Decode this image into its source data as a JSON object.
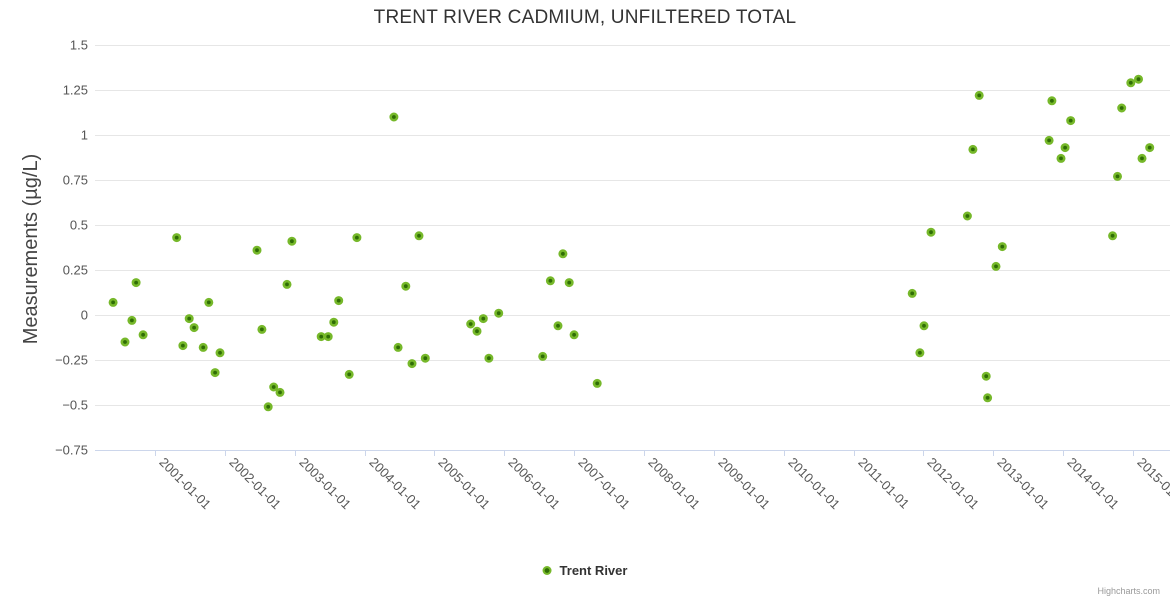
{
  "credits": "Highcharts.com",
  "legend": {
    "label": "Trent River"
  },
  "colors": {
    "background": "#ffffff",
    "title_text": "#333333",
    "axis_title_text": "#444444",
    "tick_label_text": "#555555",
    "gridline": "#e6e6e6",
    "axis_line": "#ccd6eb",
    "marker_outer": "#76b82a",
    "marker_inner": "#2f6d05"
  },
  "chart_data": {
    "type": "scatter",
    "title": "TRENT RIVER CADMIUM, UNFILTERED TOTAL",
    "xlabel": "",
    "ylabel": "Measurements (µg/L)",
    "ylim": [
      -0.75,
      1.5
    ],
    "xlim_decimal_years": [
      2000.15,
      2015.55
    ],
    "grid": "horizontal-only",
    "legend_position": "bottom-center",
    "x_tick_years": [
      2001,
      2002,
      2003,
      2004,
      2005,
      2006,
      2007,
      2008,
      2009,
      2010,
      2011,
      2012,
      2013,
      2014,
      2015
    ],
    "x_tick_labels": [
      "2001-01-01",
      "2002-01-01",
      "2003-01-01",
      "2004-01-01",
      "2005-01-01",
      "2006-01-01",
      "2007-01-01",
      "2008-01-01",
      "2009-01-01",
      "2010-01-01",
      "2011-01-01",
      "2012-01-01",
      "2013-01-01",
      "2014-01-01",
      "2015-01-01"
    ],
    "y_tick_values": [
      1.5,
      1.25,
      1,
      0.75,
      0.5,
      0.25,
      0,
      -0.25,
      -0.5,
      -0.75
    ],
    "y_tick_labels": [
      "1.5",
      "1.25",
      "1",
      "0.75",
      "0.5",
      "0.25",
      "0",
      "−0.25",
      "−0.5",
      "−0.75"
    ],
    "series": [
      {
        "name": "Trent River",
        "points": [
          [
            2000.4,
            0.07
          ],
          [
            2000.57,
            -0.15
          ],
          [
            2000.67,
            -0.03
          ],
          [
            2000.73,
            0.18
          ],
          [
            2000.83,
            -0.11
          ],
          [
            2001.31,
            0.43
          ],
          [
            2001.4,
            -0.17
          ],
          [
            2001.49,
            -0.02
          ],
          [
            2001.56,
            -0.07
          ],
          [
            2001.69,
            -0.18
          ],
          [
            2001.77,
            0.07
          ],
          [
            2001.86,
            -0.32
          ],
          [
            2001.93,
            -0.21
          ],
          [
            2002.46,
            0.36
          ],
          [
            2002.53,
            -0.08
          ],
          [
            2002.62,
            -0.51
          ],
          [
            2002.7,
            -0.4
          ],
          [
            2002.79,
            -0.43
          ],
          [
            2002.89,
            0.17
          ],
          [
            2002.96,
            0.41
          ],
          [
            2003.38,
            -0.12
          ],
          [
            2003.48,
            -0.12
          ],
          [
            2003.56,
            -0.04
          ],
          [
            2003.63,
            0.08
          ],
          [
            2003.78,
            -0.33
          ],
          [
            2003.89,
            0.43
          ],
          [
            2004.42,
            1.1
          ],
          [
            2004.48,
            -0.18
          ],
          [
            2004.59,
            0.16
          ],
          [
            2004.68,
            -0.27
          ],
          [
            2004.78,
            0.44
          ],
          [
            2004.87,
            -0.24
          ],
          [
            2005.52,
            -0.05
          ],
          [
            2005.61,
            -0.09
          ],
          [
            2005.7,
            -0.02
          ],
          [
            2005.78,
            -0.24
          ],
          [
            2005.92,
            0.01
          ],
          [
            2006.55,
            -0.23
          ],
          [
            2006.66,
            0.19
          ],
          [
            2006.77,
            -0.06
          ],
          [
            2006.84,
            0.34
          ],
          [
            2006.93,
            0.18
          ],
          [
            2007.0,
            -0.11
          ],
          [
            2007.33,
            -0.38
          ],
          [
            2011.84,
            0.12
          ],
          [
            2011.95,
            -0.21
          ],
          [
            2012.01,
            -0.06
          ],
          [
            2012.11,
            0.46
          ],
          [
            2012.63,
            0.55
          ],
          [
            2012.71,
            0.92
          ],
          [
            2012.8,
            1.22
          ],
          [
            2012.9,
            -0.34
          ],
          [
            2012.92,
            -0.46
          ],
          [
            2013.04,
            0.27
          ],
          [
            2013.13,
            0.38
          ],
          [
            2013.8,
            0.97
          ],
          [
            2013.84,
            1.19
          ],
          [
            2013.97,
            0.87
          ],
          [
            2014.03,
            0.93
          ],
          [
            2014.11,
            1.08
          ],
          [
            2014.71,
            0.44
          ],
          [
            2014.78,
            0.77
          ],
          [
            2014.84,
            1.15
          ],
          [
            2014.97,
            1.29
          ],
          [
            2015.08,
            1.31
          ],
          [
            2015.13,
            0.87
          ],
          [
            2015.24,
            0.93
          ]
        ]
      }
    ]
  }
}
